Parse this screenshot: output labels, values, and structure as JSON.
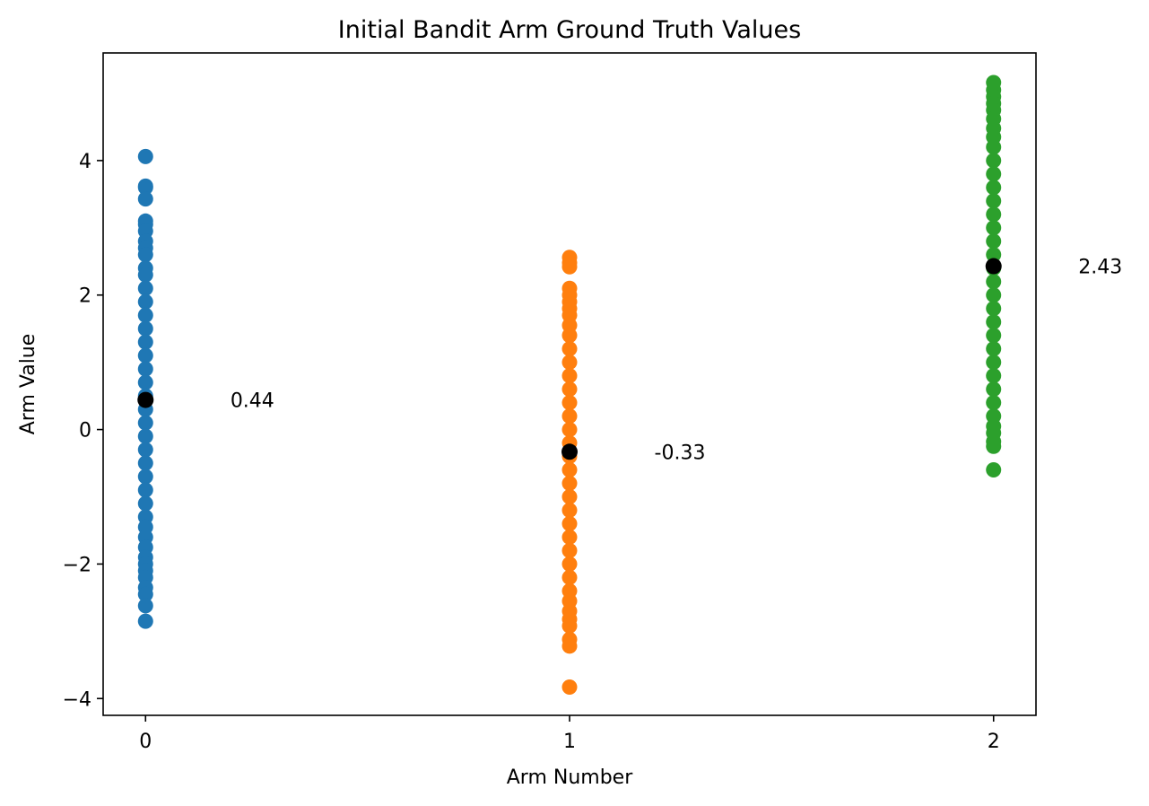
{
  "chart_data": {
    "type": "scatter",
    "title": "Initial Bandit Arm Ground Truth Values",
    "xlabel": "Arm Number",
    "ylabel": "Arm Value",
    "xlim": [
      -0.1,
      2.1
    ],
    "ylim": [
      -4.25,
      5.6
    ],
    "x_ticks": [
      0,
      1,
      2
    ],
    "y_ticks": [
      -4,
      -2,
      0,
      2,
      4
    ],
    "y_tick_labels": [
      "−4",
      "−2",
      "0",
      "2",
      "4"
    ],
    "grid": false,
    "series": [
      {
        "arm": 0,
        "color": "#1f77b4",
        "values": [
          4.06,
          3.62,
          3.6,
          3.43,
          3.1,
          3.05,
          2.95,
          2.8,
          2.7,
          2.6,
          2.4,
          2.3,
          2.1,
          1.9,
          1.7,
          1.5,
          1.3,
          1.1,
          0.9,
          0.7,
          0.5,
          0.3,
          0.1,
          -0.1,
          -0.3,
          -0.5,
          -0.7,
          -0.9,
          -1.1,
          -1.3,
          -1.45,
          -1.6,
          -1.75,
          -1.9,
          -2.0,
          -2.1,
          -2.2,
          -2.35,
          -2.45,
          -2.62,
          -2.85
        ]
      },
      {
        "arm": 1,
        "color": "#ff7f0e",
        "values": [
          2.56,
          2.48,
          2.42,
          2.1,
          2.0,
          1.9,
          1.8,
          1.7,
          1.55,
          1.4,
          1.2,
          1.0,
          0.8,
          0.6,
          0.4,
          0.2,
          0.0,
          -0.2,
          -0.4,
          -0.6,
          -0.8,
          -1.0,
          -1.2,
          -1.4,
          -1.6,
          -1.8,
          -2.0,
          -2.2,
          -2.4,
          -2.55,
          -2.7,
          -2.82,
          -2.92,
          -3.12,
          -3.22,
          -3.83
        ]
      },
      {
        "arm": 2,
        "color": "#2ca02c",
        "values": [
          5.16,
          5.05,
          4.95,
          4.85,
          4.75,
          4.62,
          4.48,
          4.35,
          4.2,
          4.0,
          3.8,
          3.6,
          3.4,
          3.2,
          3.0,
          2.8,
          2.6,
          2.4,
          2.2,
          2.0,
          1.8,
          1.6,
          1.4,
          1.2,
          1.0,
          0.8,
          0.6,
          0.4,
          0.2,
          0.05,
          -0.05,
          -0.18,
          -0.25,
          -0.6
        ]
      }
    ],
    "means": [
      {
        "arm": 0,
        "value": 0.44,
        "label": "0.44",
        "color": "#000000"
      },
      {
        "arm": 1,
        "value": -0.33,
        "label": "-0.33",
        "color": "#000000"
      },
      {
        "arm": 2,
        "value": 2.43,
        "label": "2.43",
        "color": "#000000"
      }
    ]
  }
}
